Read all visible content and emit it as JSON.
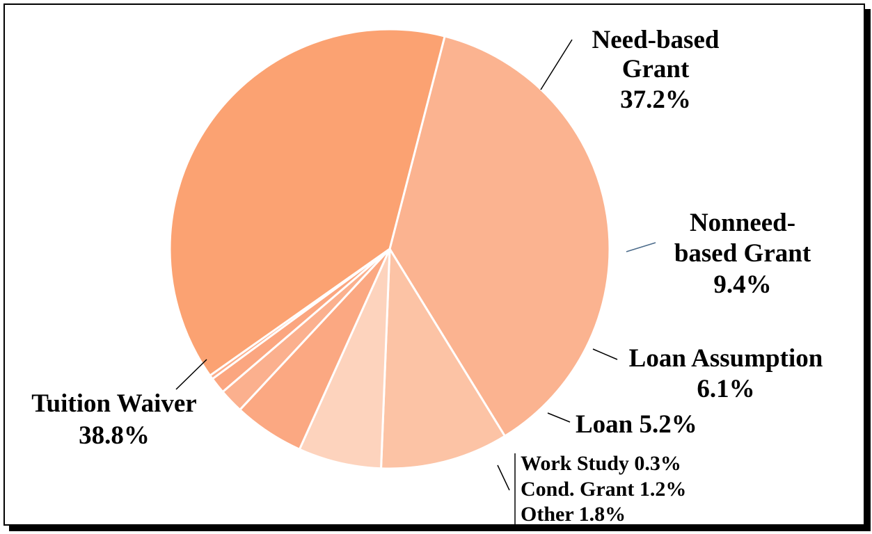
{
  "chart_data": {
    "type": "pie",
    "slices": [
      {
        "name": "Need-based Grant",
        "value": 37.2,
        "color": "#fbb390",
        "label_lines": [
          "Need-based",
          "Grant",
          "37.2%"
        ]
      },
      {
        "name": "Nonneed-based Grant",
        "value": 9.4,
        "color": "#fcc3a5",
        "label_lines": [
          "Nonneed-",
          "based Grant",
          "9.4%"
        ]
      },
      {
        "name": "Loan Assumption",
        "value": 6.1,
        "color": "#fdd3bd",
        "label_lines": [
          "Loan Assumption",
          "6.1%"
        ]
      },
      {
        "name": "Loan",
        "value": 5.2,
        "color": "#fba882",
        "label_lines": [
          "Loan  5.2%"
        ]
      },
      {
        "name": "Other",
        "value": 1.8,
        "color": "#fbb08e",
        "label_lines": [
          "Other 1.8%"
        ]
      },
      {
        "name": "Cond. Grant",
        "value": 1.2,
        "color": "#fba680",
        "label_lines": [
          "Cond. Grant 1.2%"
        ]
      },
      {
        "name": "Work Study",
        "value": 0.3,
        "color": "#fbad8a",
        "label_lines": [
          "Work Study 0.3%"
        ]
      },
      {
        "name": "Tuition Waiver",
        "value": 38.8,
        "color": "#fba272",
        "label_lines": [
          "Tuition Waiver",
          "38.8%"
        ]
      }
    ],
    "slice_border_color": "#ffffff",
    "background": "#ffffff",
    "frame_color": "#000000"
  }
}
